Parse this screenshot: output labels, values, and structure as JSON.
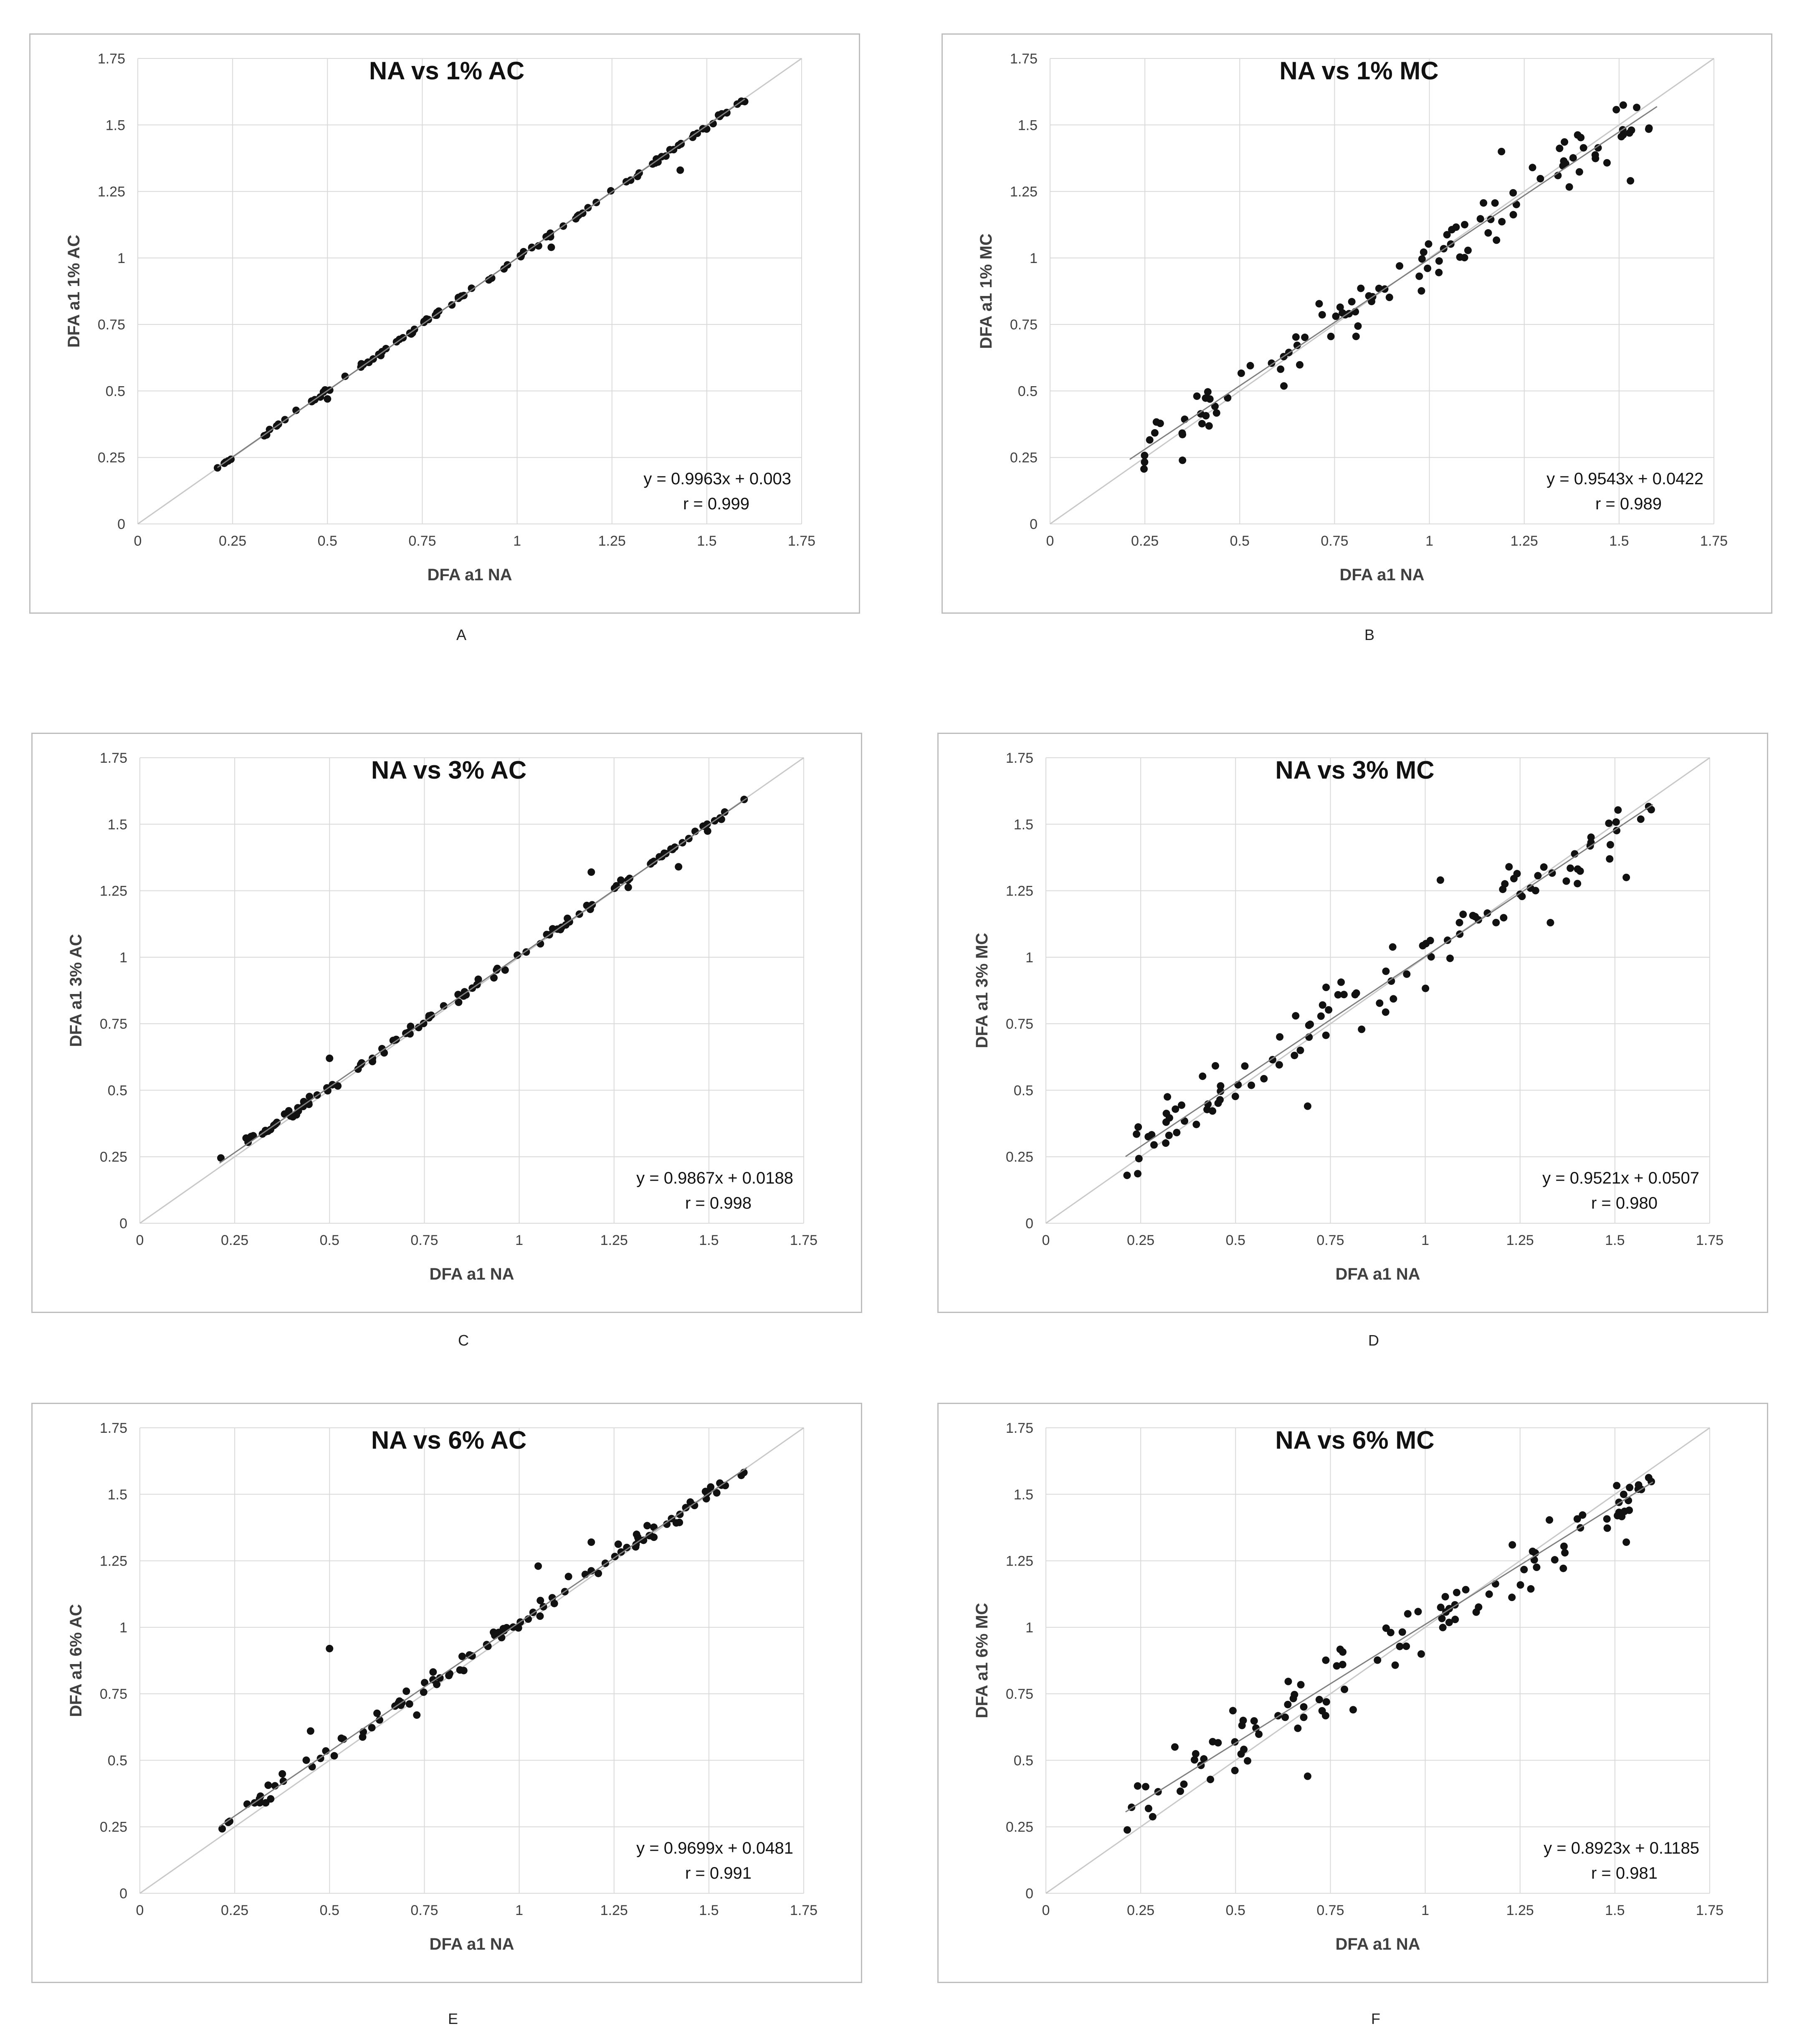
{
  "charts": [
    {
      "panel_label": "A",
      "title": "NA vs 1% AC",
      "xlabel": "DFA a1 NA",
      "ylabel": "DFA a1 1% AC",
      "equation": "y = 0.9963x + 0.003",
      "r_text": "r = 0.999",
      "slope": 0.9963,
      "intercept": 0.003,
      "noise": 0.008,
      "outliers": [
        [
          1.43,
          1.33
        ],
        [
          1.09,
          1.04
        ],
        [
          0.5,
          0.47
        ]
      ]
    },
    {
      "panel_label": "B",
      "title": "NA vs 1% MC",
      "xlabel": "DFA a1 NA",
      "ylabel": "DFA a1 1% MC",
      "equation": "y = 0.9543x + 0.0422",
      "r_text": "r = 0.989",
      "slope": 0.9543,
      "intercept": 0.0422,
      "noise": 0.07,
      "outliers": [
        [
          1.19,
          1.4
        ],
        [
          1.53,
          1.29
        ]
      ]
    },
    {
      "panel_label": "C",
      "title": "NA vs 3% AC",
      "xlabel": "DFA a1 NA",
      "ylabel": "DFA a1 3% AC",
      "equation": "y = 0.9867x + 0.0188",
      "r_text": "r = 0.998",
      "slope": 0.9867,
      "intercept": 0.0188,
      "noise": 0.015,
      "outliers": [
        [
          0.5,
          0.62
        ],
        [
          1.19,
          1.32
        ],
        [
          1.42,
          1.34
        ],
        [
          0.28,
          0.32
        ]
      ]
    },
    {
      "panel_label": "D",
      "title": "NA vs 3% MC",
      "xlabel": "DFA a1 NA",
      "ylabel": "DFA a1 3% MC",
      "equation": "y = 0.9521x + 0.0507",
      "r_text": "r = 0.980",
      "slope": 0.9521,
      "intercept": 0.0507,
      "noise": 0.09,
      "outliers": [
        [
          0.69,
          0.44
        ],
        [
          1.33,
          1.13
        ],
        [
          1.53,
          1.3
        ],
        [
          1.04,
          1.29
        ]
      ]
    },
    {
      "panel_label": "E",
      "title": "NA vs 6% AC",
      "xlabel": "DFA a1 NA",
      "ylabel": "DFA a1 6% AC",
      "equation": "y = 0.9699x + 0.0481",
      "r_text": "r = 0.991",
      "slope": 0.9699,
      "intercept": 0.0481,
      "noise": 0.025,
      "outliers": [
        [
          0.5,
          0.92
        ],
        [
          0.45,
          0.61
        ],
        [
          1.05,
          1.23
        ],
        [
          1.19,
          1.32
        ],
        [
          0.73,
          0.67
        ]
      ]
    },
    {
      "panel_label": "F",
      "title": "NA vs 6% MC",
      "xlabel": "DFA a1 NA",
      "ylabel": "DFA a1 6% MC",
      "equation": "y = 0.8923x + 0.1185",
      "r_text": "r = 0.981",
      "slope": 0.8923,
      "intercept": 0.1185,
      "noise": 0.08,
      "outliers": [
        [
          0.69,
          0.44
        ],
        [
          0.81,
          0.69
        ],
        [
          0.34,
          0.55
        ],
        [
          1.53,
          1.32
        ]
      ]
    }
  ],
  "chart_data": [
    {
      "type": "scatter",
      "title": "NA vs 1% AC",
      "xlabel": "DFA a1 NA",
      "ylabel": "DFA a1 1% AC",
      "xlim": [
        0,
        1.75
      ],
      "ylim": [
        0,
        1.75
      ],
      "x_ticks": [
        "0",
        "0.25",
        "0.5",
        "0.75",
        "1",
        "1.25",
        "1.5",
        "1.75"
      ],
      "y_ticks": [
        "0",
        "0.25",
        "0.5",
        "0.75",
        "1",
        "1.25",
        "1.5",
        "1.75"
      ],
      "x_range": [
        0.21,
        1.6
      ],
      "n_points": 110,
      "fit": {
        "slope": 0.9963,
        "intercept": 0.003,
        "r": 0.999
      },
      "identity_line": true,
      "grid": true
    },
    {
      "type": "scatter",
      "title": "NA vs 1% MC",
      "xlabel": "DFA a1 NA",
      "ylabel": "DFA a1 1% MC",
      "xlim": [
        0,
        1.75
      ],
      "ylim": [
        0,
        1.75
      ],
      "x_ticks": [
        "0",
        "0.25",
        "0.5",
        "0.75",
        "1",
        "1.25",
        "1.5",
        "1.75"
      ],
      "y_ticks": [
        "0",
        "0.25",
        "0.5",
        "0.75",
        "1",
        "1.25",
        "1.5",
        "1.75"
      ],
      "x_range": [
        0.21,
        1.6
      ],
      "n_points": 110,
      "fit": {
        "slope": 0.9543,
        "intercept": 0.0422,
        "r": 0.989
      },
      "identity_line": true,
      "grid": true
    },
    {
      "type": "scatter",
      "title": "NA vs 3% AC",
      "xlabel": "DFA a1 NA",
      "ylabel": "DFA a1 3% AC",
      "xlim": [
        0,
        1.75
      ],
      "ylim": [
        0,
        1.75
      ],
      "x_ticks": [
        "0",
        "0.25",
        "0.5",
        "0.75",
        "1",
        "1.25",
        "1.5",
        "1.75"
      ],
      "y_ticks": [
        "0",
        "0.25",
        "0.5",
        "0.75",
        "1",
        "1.25",
        "1.5",
        "1.75"
      ],
      "x_range": [
        0.21,
        1.6
      ],
      "n_points": 110,
      "fit": {
        "slope": 0.9867,
        "intercept": 0.0188,
        "r": 0.998
      },
      "identity_line": true,
      "grid": true
    },
    {
      "type": "scatter",
      "title": "NA vs 3% MC",
      "xlabel": "DFA a1 NA",
      "ylabel": "DFA a1 3% MC",
      "xlim": [
        0,
        1.75
      ],
      "ylim": [
        0,
        1.75
      ],
      "x_ticks": [
        "0",
        "0.25",
        "0.5",
        "0.75",
        "1",
        "1.25",
        "1.5",
        "1.75"
      ],
      "y_ticks": [
        "0",
        "0.25",
        "0.5",
        "0.75",
        "1",
        "1.25",
        "1.5",
        "1.75"
      ],
      "x_range": [
        0.21,
        1.6
      ],
      "n_points": 110,
      "fit": {
        "slope": 0.9521,
        "intercept": 0.0507,
        "r": 0.98
      },
      "identity_line": true,
      "grid": true
    },
    {
      "type": "scatter",
      "title": "NA vs 6% AC",
      "xlabel": "DFA a1 NA",
      "ylabel": "DFA a1 6% AC",
      "xlim": [
        0,
        1.75
      ],
      "ylim": [
        0,
        1.75
      ],
      "x_ticks": [
        "0",
        "0.25",
        "0.5",
        "0.75",
        "1",
        "1.25",
        "1.5",
        "1.75"
      ],
      "y_ticks": [
        "0",
        "0.25",
        "0.5",
        "0.75",
        "1",
        "1.25",
        "1.5",
        "1.75"
      ],
      "x_range": [
        0.21,
        1.6
      ],
      "n_points": 110,
      "fit": {
        "slope": 0.9699,
        "intercept": 0.0481,
        "r": 0.991
      },
      "identity_line": true,
      "grid": true
    },
    {
      "type": "scatter",
      "title": "NA vs 6% MC",
      "xlabel": "DFA a1 NA",
      "ylabel": "DFA a1 6% MC",
      "xlim": [
        0,
        1.75
      ],
      "ylim": [
        0,
        1.75
      ],
      "x_ticks": [
        "0",
        "0.25",
        "0.5",
        "0.75",
        "1",
        "1.25",
        "1.5",
        "1.75"
      ],
      "y_ticks": [
        "0",
        "0.25",
        "0.5",
        "0.75",
        "1",
        "1.25",
        "1.5",
        "1.75"
      ],
      "x_range": [
        0.21,
        1.6
      ],
      "n_points": 110,
      "fit": {
        "slope": 0.8923,
        "intercept": 0.1185,
        "r": 0.981
      },
      "identity_line": true,
      "grid": true
    }
  ]
}
